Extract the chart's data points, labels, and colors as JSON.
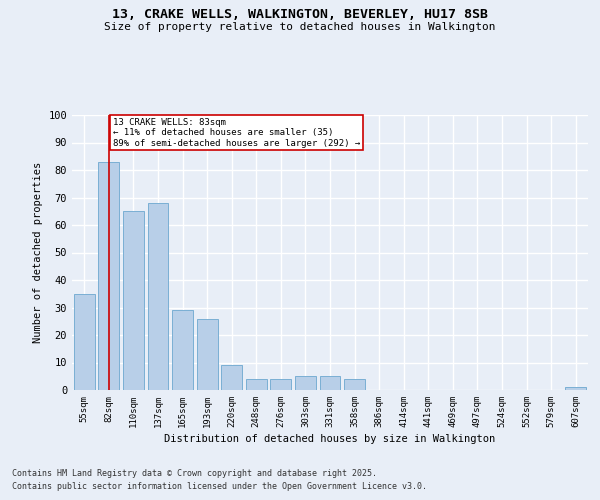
{
  "title_line1": "13, CRAKE WELLS, WALKINGTON, BEVERLEY, HU17 8SB",
  "title_line2": "Size of property relative to detached houses in Walkington",
  "xlabel": "Distribution of detached houses by size in Walkington",
  "ylabel": "Number of detached properties",
  "categories": [
    "55sqm",
    "82sqm",
    "110sqm",
    "137sqm",
    "165sqm",
    "193sqm",
    "220sqm",
    "248sqm",
    "276sqm",
    "303sqm",
    "331sqm",
    "358sqm",
    "386sqm",
    "414sqm",
    "441sqm",
    "469sqm",
    "497sqm",
    "524sqm",
    "552sqm",
    "579sqm",
    "607sqm"
  ],
  "values": [
    35,
    83,
    65,
    68,
    29,
    26,
    9,
    4,
    4,
    5,
    5,
    4,
    0,
    0,
    0,
    0,
    0,
    0,
    0,
    0,
    1
  ],
  "bar_color": "#b8cfe8",
  "bar_edge_color": "#7aafd4",
  "background_color": "#e8eef7",
  "grid_color": "#ffffff",
  "annotation_box_color": "#cc0000",
  "annotation_text": "13 CRAKE WELLS: 83sqm\n← 11% of detached houses are smaller (35)\n89% of semi-detached houses are larger (292) →",
  "vline_x_index": 1,
  "ylim": [
    0,
    100
  ],
  "yticks": [
    0,
    10,
    20,
    30,
    40,
    50,
    60,
    70,
    80,
    90,
    100
  ],
  "footnote1": "Contains HM Land Registry data © Crown copyright and database right 2025.",
  "footnote2": "Contains public sector information licensed under the Open Government Licence v3.0."
}
